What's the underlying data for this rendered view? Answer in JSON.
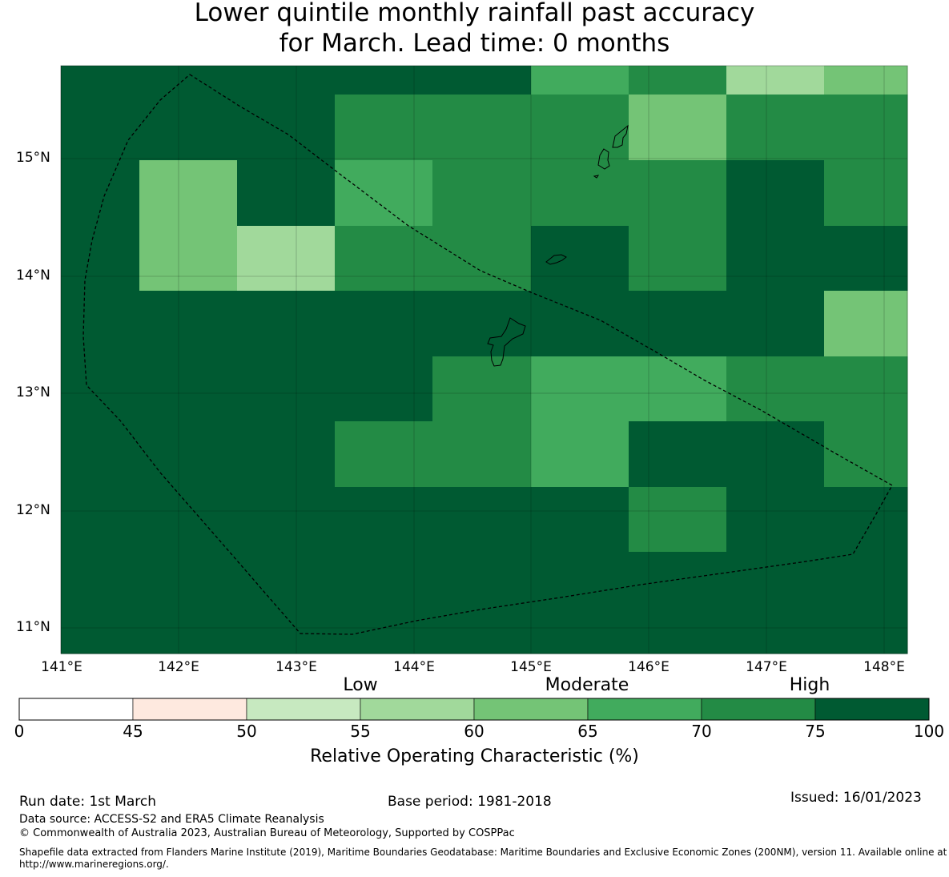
{
  "title_line1": "Lower quintile monthly rainfall past accuracy",
  "title_line2": "for March. Lead time: 0 months",
  "map": {
    "lat_labels": [
      "15°N",
      "14°N",
      "13°N",
      "12°N",
      "11°N"
    ],
    "lon_labels": [
      "141°E",
      "142°E",
      "143°E",
      "144°E",
      "145°E",
      "146°E",
      "147°E",
      "148°E"
    ],
    "cell_values": [
      [
        80,
        80,
        80,
        80,
        80,
        67,
        72,
        57,
        62
      ],
      [
        80,
        80,
        80,
        72,
        72,
        72,
        62,
        72,
        72
      ],
      [
        80,
        62,
        80,
        67,
        72,
        72,
        72,
        80,
        72
      ],
      [
        80,
        62,
        57,
        72,
        72,
        80,
        72,
        80,
        80
      ],
      [
        80,
        80,
        80,
        80,
        80,
        80,
        80,
        80,
        62
      ],
      [
        80,
        80,
        80,
        80,
        72,
        67,
        67,
        72,
        72
      ],
      [
        80,
        80,
        80,
        72,
        72,
        67,
        80,
        80,
        72
      ],
      [
        80,
        80,
        80,
        80,
        80,
        80,
        72,
        80,
        80
      ],
      [
        80,
        80,
        80,
        80,
        80,
        80,
        80,
        80,
        80
      ]
    ]
  },
  "legend": {
    "category_labels": [
      "Low",
      "Moderate",
      "High"
    ],
    "ticks": [
      "0",
      "45",
      "50",
      "55",
      "60",
      "65",
      "70",
      "75",
      "100"
    ],
    "colors": [
      "#ffffff",
      "#fee9df",
      "#c7e9c0",
      "#a1d99b",
      "#74c476",
      "#41ab5d",
      "#238b45",
      "#005a32"
    ],
    "label": "Relative Operating Characteristic (%)"
  },
  "footer": {
    "run_date": "Run date: 1st March",
    "base_period": "Base period: 1981-2018",
    "issued": "Issued: 16/01/2023",
    "data_source": "Data source: ACCESS-S2 and ERA5 Climate Reanalysis",
    "copyright": "© Commonwealth of Australia 2023, Australian Bureau of Meteorology, Supported by COSPPac",
    "shapefile": "Shapefile data extracted from Flanders Marine Institute (2019), Maritime Boundaries Geodatabase: Maritime Boundaries and Exclusive Economic Zones (200NM), version 11. Available online at http://www.marineregions.org/."
  }
}
